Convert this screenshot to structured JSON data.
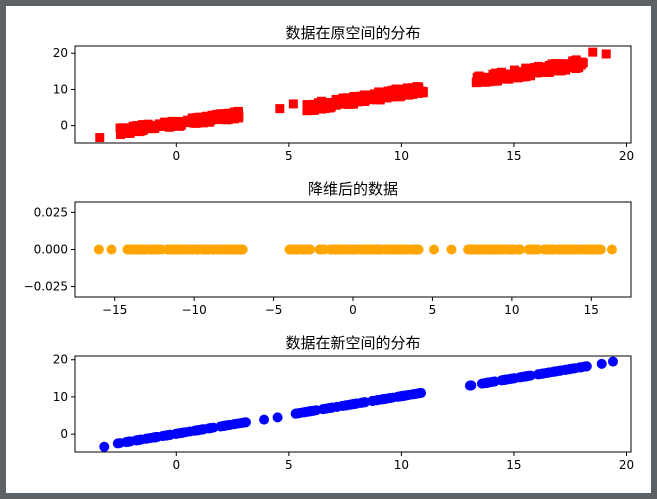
{
  "chart_data": [
    {
      "type": "scatter",
      "title": "数据在原空间的分布",
      "xlabel": "",
      "ylabel": "",
      "xlim": [
        -4.5,
        20.2
      ],
      "ylim": [
        -4.8,
        22
      ],
      "xticks": [
        0,
        5,
        10,
        15,
        20
      ],
      "yticks": [
        0,
        10,
        20
      ],
      "tick_labels_x": [
        "0",
        "5",
        "10",
        "15",
        "20"
      ],
      "tick_labels_y": [
        "0",
        "10",
        "20"
      ],
      "marker": "square",
      "color": "#ff0000",
      "grid": false,
      "clusters": [
        {
          "x_range": [
            -2.5,
            2.8
          ],
          "y_base": -1.5,
          "slope": 0.85,
          "spread": 1.0,
          "n": 140
        },
        {
          "x_range": [
            5.8,
            11.0
          ],
          "y_base": 5.0,
          "slope": 1.0,
          "spread": 1.2,
          "n": 140
        },
        {
          "x_range": [
            13.3,
            18.1
          ],
          "y_base": 12.5,
          "slope": 1.0,
          "spread": 1.2,
          "n": 130
        }
      ],
      "series": [
        {
          "x": [
            -3.4,
            4.6,
            5.2,
            18.5,
            19.1
          ],
          "y": [
            -3.3,
            4.7,
            6.0,
            20.3,
            19.8
          ]
        }
      ]
    },
    {
      "type": "scatter",
      "title": "降维后的数据",
      "xlabel": "",
      "ylabel": "",
      "xlim": [
        -17.5,
        17.5
      ],
      "ylim": [
        -0.032,
        0.032
      ],
      "xticks": [
        -15,
        -10,
        -5,
        0,
        5,
        10,
        15
      ],
      "yticks": [
        -0.025,
        0,
        0.025
      ],
      "tick_labels_x": [
        "−15",
        "−10",
        "−5",
        "0",
        "5",
        "10",
        "15"
      ],
      "tick_labels_y": [
        "−0.025",
        "0.000",
        "0.025"
      ],
      "marker": "circle",
      "color": "#ffa500",
      "grid": false,
      "clusters": [
        {
          "x_range": [
            -14.2,
            -6.8
          ],
          "y_base": 0,
          "slope": 0,
          "spread": 0,
          "n": 110
        },
        {
          "x_range": [
            -4.0,
            4.2
          ],
          "y_base": 0,
          "slope": 0,
          "spread": 0,
          "n": 110
        },
        {
          "x_range": [
            7.2,
            15.6
          ],
          "y_base": 0,
          "slope": 0,
          "spread": 0,
          "n": 110
        }
      ],
      "series": [
        {
          "x": [
            -16.0,
            -15.2,
            5.1,
            6.2,
            16.3
          ],
          "y": [
            0,
            0,
            0,
            0,
            0
          ]
        }
      ]
    },
    {
      "type": "scatter",
      "title": "数据在新空间的分布",
      "xlabel": "",
      "ylabel": "",
      "xlim": [
        -4.5,
        20.2
      ],
      "ylim": [
        -4.8,
        21
      ],
      "xticks": [
        0,
        5,
        10,
        15,
        20
      ],
      "yticks": [
        0,
        10,
        20
      ],
      "tick_labels_x": [
        "0",
        "5",
        "10",
        "15",
        "20"
      ],
      "tick_labels_y": [
        "0",
        "10",
        "20"
      ],
      "marker": "circle",
      "color": "#0000ff",
      "grid": false,
      "clusters": [
        {
          "x_range": [
            -2.6,
            3.2
          ],
          "y_base": -2.5,
          "slope": 1.0,
          "spread": 0,
          "n": 90
        },
        {
          "x_range": [
            5.3,
            10.9
          ],
          "y_base": 5.5,
          "slope": 1.0,
          "spread": 0,
          "n": 90
        },
        {
          "x_range": [
            13.0,
            18.3
          ],
          "y_base": 13.0,
          "slope": 1.0,
          "spread": 0,
          "n": 90
        }
      ],
      "series": [
        {
          "x": [
            -3.2,
            3.9,
            4.5,
            18.9,
            19.4
          ],
          "y": [
            -3.4,
            3.9,
            4.5,
            18.9,
            19.5
          ]
        }
      ]
    }
  ]
}
